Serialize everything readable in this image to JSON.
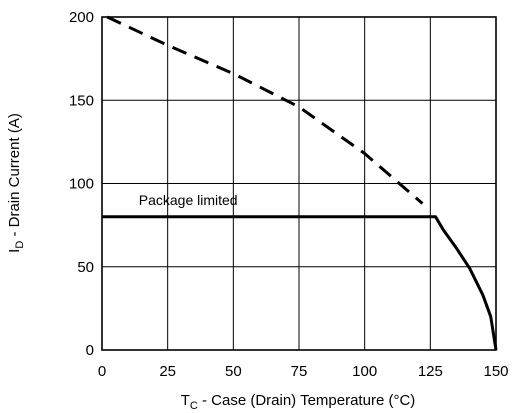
{
  "chart_data": {
    "type": "line",
    "xlim": [
      0,
      150
    ],
    "ylim": [
      0,
      200
    ],
    "x_ticks": [
      0,
      25,
      50,
      75,
      100,
      125,
      150
    ],
    "y_ticks": [
      0,
      50,
      100,
      150,
      200
    ],
    "x_tick_labels": [
      "0",
      "25",
      "50",
      "75",
      "100",
      "125",
      "150"
    ],
    "y_tick_labels": [
      "0",
      "50",
      "100",
      "150",
      "200"
    ],
    "grid": true,
    "xlabel": {
      "main": "T",
      "sub": "C",
      "rest": " - Case (Drain) Temperature (°C)"
    },
    "ylabel": {
      "main": "I",
      "sub": "D",
      "rest": " - Drain Current (A)"
    },
    "series": [
      {
        "style": "dashed",
        "x": [
          2,
          25,
          50,
          75,
          100,
          122
        ],
        "y": [
          200,
          183,
          166,
          146,
          118,
          88
        ]
      },
      {
        "style": "solid",
        "x": [
          0,
          127,
          130,
          135,
          140,
          145,
          148,
          150
        ],
        "y": [
          80,
          80,
          72,
          61,
          49,
          33,
          20,
          0
        ]
      }
    ],
    "annotations": [
      {
        "text": "Package limited",
        "x": 14,
        "y": 90
      }
    ],
    "colors": {
      "line": "#000000",
      "grid": "#000000",
      "background": "#ffffff"
    }
  }
}
